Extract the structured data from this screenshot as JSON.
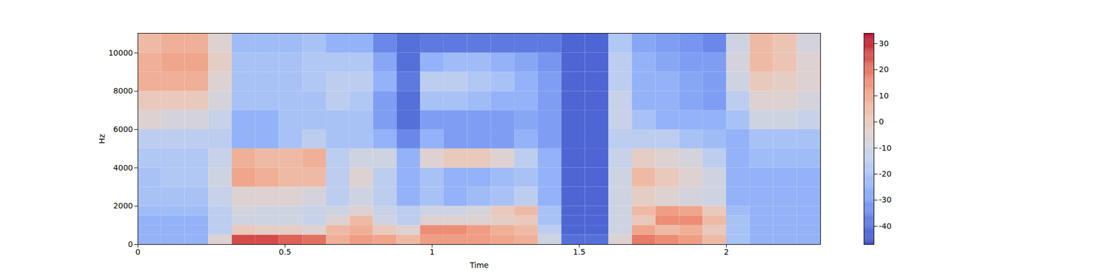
{
  "chart_data": {
    "type": "heatmap",
    "xlabel": "Time",
    "ylabel": "Hz",
    "xlim": [
      0,
      2.32
    ],
    "ylim": [
      0,
      11025
    ],
    "xticks": [
      0,
      0.5,
      1,
      1.5,
      2
    ],
    "yticks": [
      0,
      2000,
      4000,
      6000,
      8000,
      10000
    ],
    "x_edges": [
      0,
      0.08,
      0.16,
      0.24,
      0.32,
      0.4,
      0.48,
      0.56,
      0.64,
      0.72,
      0.8,
      0.88,
      0.96,
      1.04,
      1.12,
      1.2,
      1.28,
      1.36,
      1.44,
      1.52,
      1.6,
      1.68,
      1.76,
      1.84,
      1.92,
      2.0,
      2.08,
      2.16,
      2.24,
      2.32
    ],
    "y_edges": [
      0,
      500,
      1000,
      1500,
      2000,
      3000,
      4000,
      5000,
      6000,
      7000,
      8000,
      9000,
      10000,
      11025
    ],
    "values": [
      [
        -25,
        -25,
        -25,
        -5,
        25,
        25,
        22,
        20,
        8,
        12,
        10,
        5,
        12,
        12,
        12,
        10,
        8,
        -10,
        -40,
        -40,
        -5,
        18,
        15,
        12,
        5,
        -20,
        -25,
        -25,
        -25
      ],
      [
        -25,
        -25,
        -25,
        -15,
        0,
        -2,
        -2,
        -5,
        5,
        8,
        0,
        -5,
        15,
        15,
        12,
        8,
        5,
        -15,
        -42,
        -42,
        -10,
        10,
        5,
        8,
        0,
        -20,
        -25,
        -25,
        -25
      ],
      [
        -25,
        -25,
        -25,
        -15,
        -10,
        -10,
        -10,
        -12,
        -5,
        5,
        -10,
        -15,
        -5,
        -5,
        -5,
        -2,
        0,
        -20,
        -42,
        -42,
        -10,
        0,
        15,
        15,
        5,
        -20,
        -25,
        -25,
        -25
      ],
      [
        -22,
        -22,
        -22,
        -15,
        -8,
        -10,
        -10,
        -12,
        -10,
        -5,
        -12,
        -15,
        -10,
        -10,
        -8,
        0,
        5,
        -20,
        -42,
        -42,
        -10,
        5,
        12,
        10,
        0,
        -22,
        -25,
        -25,
        -25
      ],
      [
        -20,
        -20,
        -20,
        -12,
        -5,
        -5,
        -5,
        -8,
        -15,
        -10,
        -15,
        -25,
        -20,
        -25,
        -22,
        -20,
        -15,
        -25,
        -42,
        -42,
        -10,
        -2,
        -5,
        -8,
        -10,
        -25,
        -25,
        -25,
        -25
      ],
      [
        -20,
        -18,
        -18,
        -10,
        10,
        8,
        5,
        5,
        -15,
        -5,
        -15,
        -25,
        -20,
        -25,
        -25,
        -22,
        -20,
        -25,
        -42,
        -42,
        -10,
        5,
        0,
        -5,
        -10,
        -25,
        -25,
        -25,
        -25
      ],
      [
        -18,
        -18,
        -18,
        -12,
        8,
        5,
        5,
        8,
        -15,
        -10,
        -10,
        -25,
        -5,
        0,
        0,
        -5,
        -15,
        -25,
        -42,
        -42,
        -12,
        -2,
        -5,
        -8,
        -15,
        -25,
        -22,
        -22,
        -22
      ],
      [
        -15,
        -15,
        -15,
        -15,
        -25,
        -25,
        -20,
        -15,
        -20,
        -20,
        -25,
        -35,
        -25,
        -30,
        -30,
        -30,
        -25,
        -30,
        -42,
        -42,
        -15,
        -15,
        -15,
        -20,
        -22,
        -25,
        -20,
        -20,
        -20
      ],
      [
        -5,
        -8,
        -8,
        -12,
        -25,
        -25,
        -20,
        -20,
        -20,
        -20,
        -30,
        -40,
        -30,
        -30,
        -30,
        -30,
        -28,
        -30,
        -42,
        -42,
        -12,
        -20,
        -25,
        -25,
        -25,
        -20,
        -10,
        -10,
        -12
      ],
      [
        0,
        0,
        0,
        -8,
        -20,
        -20,
        -20,
        -20,
        -15,
        -18,
        -30,
        -40,
        -20,
        -20,
        -22,
        -25,
        -25,
        -30,
        -42,
        -42,
        -12,
        -25,
        -25,
        -28,
        -30,
        -15,
        -5,
        -5,
        -8
      ],
      [
        8,
        8,
        8,
        -5,
        -20,
        -20,
        -20,
        -18,
        -15,
        -15,
        -25,
        -38,
        -15,
        -15,
        -18,
        -20,
        -25,
        -30,
        -42,
        -42,
        -15,
        -25,
        -25,
        -28,
        -30,
        -10,
        0,
        -2,
        -5
      ],
      [
        8,
        10,
        10,
        -2,
        -20,
        -20,
        -20,
        -18,
        -18,
        -18,
        -28,
        -40,
        -25,
        -22,
        -22,
        -25,
        -28,
        -32,
        -42,
        -42,
        -15,
        -25,
        -28,
        -30,
        -30,
        -8,
        5,
        2,
        -5
      ],
      [
        5,
        8,
        8,
        -5,
        -22,
        -22,
        -22,
        -20,
        -25,
        -25,
        -35,
        -40,
        -38,
        -38,
        -38,
        -38,
        -38,
        -38,
        -42,
        -42,
        -18,
        -28,
        -30,
        -32,
        -35,
        -10,
        5,
        2,
        -8
      ]
    ],
    "colorbar_lim": [
      -47,
      34
    ],
    "colorbar_ticks": [
      -40,
      -30,
      -20,
      -10,
      0,
      10,
      20,
      30
    ]
  }
}
